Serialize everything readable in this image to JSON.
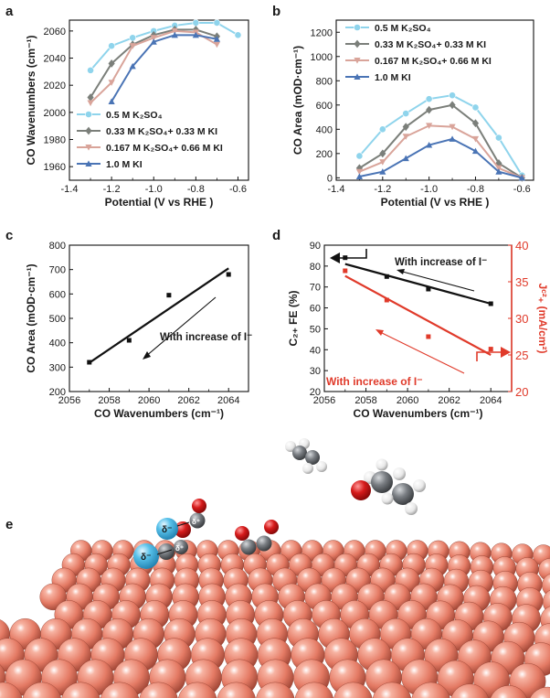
{
  "panel_labels": {
    "a": "a",
    "b": "b",
    "c": "c",
    "d": "d",
    "e": "e"
  },
  "colors": {
    "k2so4": "#8fd4ec",
    "mix1": "#7b7f7a",
    "mix2": "#d9a49a",
    "ki": "#4a74b5",
    "black": "#111111",
    "red": "#e03a2a",
    "copper": "#e67e6a",
    "halide": "#4fb8e4",
    "oxygen": "#d01c1c",
    "carbon": "#767a7f"
  },
  "chart_data": [
    {
      "id": "a",
      "type": "line",
      "xlabel": "Potential (V vs RHE )",
      "ylabel": "CO Wavenumbers (cm⁻¹)",
      "xlim": [
        -1.4,
        -0.55
      ],
      "ylim": [
        1950,
        2068
      ],
      "xticks": [
        -1.4,
        -1.2,
        -1.0,
        -0.8,
        -0.6
      ],
      "xticklabels": [
        "-1.4",
        "-1.2",
        "-1.0",
        "-0.8",
        "-0.6"
      ],
      "yticks": [
        1960,
        1980,
        2000,
        2020,
        2040,
        2060
      ],
      "yticklabels": [
        "1960",
        "1980",
        "2000",
        "2020",
        "2040",
        "2060"
      ],
      "legend_position": "bottom-left",
      "series": [
        {
          "name": "0.5 M K₂SO₄",
          "color_key": "k2so4",
          "marker": "circle",
          "x": [
            -1.3,
            -1.2,
            -1.1,
            -1.0,
            -0.9,
            -0.8,
            -0.7,
            -0.6
          ],
          "y": [
            2031,
            2049,
            2055,
            2060,
            2064,
            2066,
            2066,
            2057
          ]
        },
        {
          "name": "0.33 M K₂SO₄+ 0.33 M KI",
          "color_key": "mix1",
          "marker": "diamond",
          "x": [
            -1.3,
            -1.2,
            -1.1,
            -1.0,
            -0.9,
            -0.8,
            -0.7
          ],
          "y": [
            2011,
            2036,
            2050,
            2057,
            2061,
            2061,
            2056
          ]
        },
        {
          "name": "0.167 M K₂SO₄+ 0.66 M KI",
          "color_key": "mix2",
          "marker": "triangle-down",
          "x": [
            -1.3,
            -1.2,
            -1.1,
            -1.0,
            -0.9,
            -0.8,
            -0.7
          ],
          "y": [
            2007,
            2022,
            2049,
            2055,
            2060,
            2059,
            2050
          ]
        },
        {
          "name": "1.0 M KI",
          "color_key": "ki",
          "marker": "triangle-up",
          "x": [
            -1.2,
            -1.1,
            -1.0,
            -0.9,
            -0.8,
            -0.7
          ],
          "y": [
            2008,
            2034,
            2052,
            2057,
            2057,
            2054
          ]
        }
      ]
    },
    {
      "id": "b",
      "type": "line",
      "xlabel": "Potential (V vs RHE )",
      "ylabel": "CO Area (mOD·cm⁻¹)",
      "xlim": [
        -1.4,
        -0.55
      ],
      "ylim": [
        -20,
        1300
      ],
      "xticks": [
        -1.4,
        -1.2,
        -1.0,
        -0.8,
        -0.6
      ],
      "xticklabels": [
        "-1.4",
        "-1.2",
        "-1.0",
        "-0.8",
        "-0.6"
      ],
      "yticks": [
        0,
        200,
        400,
        600,
        800,
        1000,
        1200
      ],
      "yticklabels": [
        "0",
        "200",
        "400",
        "600",
        "800",
        "1000",
        "1200"
      ],
      "legend_position": "top-left",
      "series": [
        {
          "name": "0.5 M K₂SO₄",
          "color_key": "k2so4",
          "marker": "circle",
          "x": [
            -1.3,
            -1.2,
            -1.1,
            -1.0,
            -0.9,
            -0.8,
            -0.7,
            -0.6
          ],
          "y": [
            180,
            400,
            530,
            650,
            680,
            580,
            330,
            20
          ]
        },
        {
          "name": "0.33 M K₂SO₄+ 0.33 M KI",
          "color_key": "mix1",
          "marker": "diamond",
          "x": [
            -1.3,
            -1.2,
            -1.1,
            -1.0,
            -0.9,
            -0.8,
            -0.7,
            -0.6
          ],
          "y": [
            80,
            200,
            420,
            560,
            600,
            450,
            120,
            0
          ]
        },
        {
          "name": "0.167 M K₂SO₄+ 0.66 M KI",
          "color_key": "mix2",
          "marker": "triangle-down",
          "x": [
            -1.3,
            -1.2,
            -1.1,
            -1.0,
            -0.9,
            -0.8,
            -0.7,
            -0.6
          ],
          "y": [
            50,
            130,
            340,
            430,
            420,
            320,
            80,
            0
          ]
        },
        {
          "name": "1.0 M KI",
          "color_key": "ki",
          "marker": "triangle-up",
          "x": [
            -1.3,
            -1.2,
            -1.1,
            -1.0,
            -0.9,
            -0.8,
            -0.7,
            -0.6
          ],
          "y": [
            10,
            50,
            160,
            270,
            320,
            220,
            50,
            0
          ]
        }
      ]
    },
    {
      "id": "c",
      "type": "scatter",
      "xlabel": "CO Wavenumbers (cm⁻¹)",
      "ylabel": "CO Area (mOD·cm⁻¹)",
      "xlim": [
        2056,
        2065
      ],
      "ylim": [
        200,
        800
      ],
      "xticks": [
        2056,
        2058,
        2060,
        2062,
        2064
      ],
      "xticklabels": [
        "2056",
        "2058",
        "2060",
        "2062",
        "2064"
      ],
      "yticks": [
        200,
        300,
        400,
        500,
        600,
        700,
        800
      ],
      "yticklabels": [
        "200",
        "300",
        "400",
        "500",
        "600",
        "700",
        "800"
      ],
      "points": {
        "x": [
          2057,
          2059,
          2061,
          2064
        ],
        "y": [
          320,
          410,
          595,
          680
        ]
      },
      "fit": {
        "x": [
          2057,
          2064
        ],
        "y": [
          318,
          705
        ]
      },
      "annotation": "With increase of I⁻"
    },
    {
      "id": "d",
      "type": "scatter",
      "xlabel": "CO Wavenumbers (cm⁻¹)",
      "ylabel_left": "C₂₊ FE (%)",
      "ylabel_right": "Jᶜ²₊ (mA/cm²)",
      "xlim": [
        2056,
        2065
      ],
      "ylim_left": [
        20,
        90
      ],
      "ylim_right": [
        20,
        40
      ],
      "xticks": [
        2056,
        2058,
        2060,
        2062,
        2064
      ],
      "xticklabels": [
        "2056",
        "2058",
        "2060",
        "2062",
        "2064"
      ],
      "yticks_left": [
        20,
        30,
        40,
        50,
        60,
        70,
        80,
        90
      ],
      "yticklabels_left": [
        "20",
        "30",
        "40",
        "50",
        "60",
        "70",
        "80",
        "90"
      ],
      "yticks_right": [
        20,
        25,
        30,
        35,
        40
      ],
      "yticklabels_right": [
        "20",
        "25",
        "30",
        "35",
        "40"
      ],
      "series": [
        {
          "name": "C2+ FE",
          "color_key": "black",
          "axis": "left",
          "x": [
            2057,
            2059,
            2061,
            2064
          ],
          "y": [
            84,
            75,
            69,
            62
          ],
          "fit_y": [
            81,
            62
          ]
        },
        {
          "name": "J C2+",
          "color_key": "red",
          "axis": "right",
          "x": [
            2057,
            2059,
            2061,
            2064
          ],
          "y": [
            36.5,
            32.5,
            27.5,
            25.8
          ],
          "fit_y": [
            35.8,
            25
          ]
        }
      ],
      "annotation_black": "With increase of I⁻",
      "annotation_red": "With increase of I⁻"
    }
  ],
  "panel_e": {
    "delta_minus": "δ⁻",
    "delta_plus": "δ⁺"
  }
}
